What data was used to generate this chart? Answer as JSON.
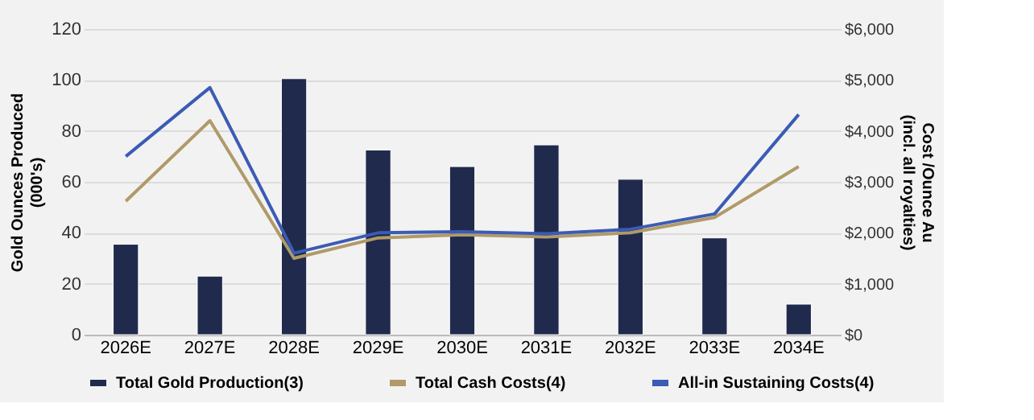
{
  "chart_data": {
    "type": "bar",
    "categories": [
      "2026E",
      "2027E",
      "2028E",
      "2029E",
      "2030E",
      "2031E",
      "2032E",
      "2033E",
      "2034E"
    ],
    "ylabel": [
      "Gold Ounces Produced",
      "(000's)"
    ],
    "y2label": [
      "Cost /Ounce Au",
      "(incl. all royalties)"
    ],
    "series": [
      {
        "name": "Total Gold Production(3)",
        "color": "#1f2a4d",
        "values": [
          35.5,
          23,
          100.5,
          72.5,
          66,
          74.5,
          61,
          38,
          12
        ]
      },
      {
        "name": "Total Cash Costs(4)",
        "type": "line",
        "axis": "y2",
        "color": "#b09a68",
        "values": [
          2620,
          4200,
          1500,
          1900,
          1960,
          1920,
          2000,
          2300,
          3300
        ]
      },
      {
        "name": "All-in Sustaining Costs(4)",
        "type": "line",
        "axis": "y2",
        "color": "#3b5bb5",
        "values": [
          3500,
          4850,
          1600,
          2000,
          2020,
          1980,
          2070,
          2370,
          4320
        ]
      }
    ],
    "ylim": [
      0,
      120
    ],
    "yticks": [
      0,
      20,
      40,
      60,
      80,
      100,
      120
    ],
    "y2lim": [
      0,
      6000
    ],
    "y2ticks": [
      {
        "value": 0,
        "label": "$0"
      },
      {
        "value": 1000,
        "label": "$1,000"
      },
      {
        "value": 2000,
        "label": "$2,000"
      },
      {
        "value": 3000,
        "label": "$3,000"
      },
      {
        "value": 4000,
        "label": "$4,000"
      },
      {
        "value": 5000,
        "label": "$5,000"
      },
      {
        "value": 6000,
        "label": "$6,000"
      }
    ],
    "grid": "y",
    "legend": "bottom",
    "marker": "none",
    "line_style": "solid"
  }
}
